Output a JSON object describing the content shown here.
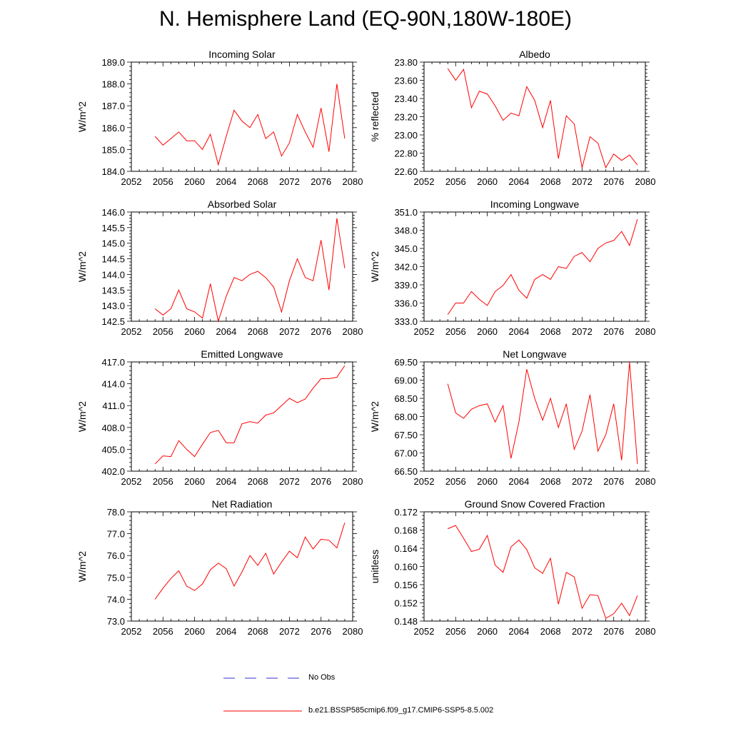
{
  "title": "N. Hemisphere Land (EQ-90N,180W-180E)",
  "colors": {
    "model": "#ff0000",
    "obs": "#3333cc",
    "axis": "#000000"
  },
  "legend": [
    {
      "label": "No Obs",
      "style": "dashed",
      "color": "#3333cc"
    },
    {
      "label": "b.e21.BSSP585cmip6.f09_g17.CMIP6-SSP5-8.5.002",
      "style": "solid",
      "color": "#ff0000"
    }
  ],
  "chart_data": [
    {
      "type": "line",
      "title": "Incoming Solar",
      "ylabel": "W/m^2",
      "xlim": [
        2052,
        2080
      ],
      "ylim": [
        184.0,
        189.0
      ],
      "xticks": [
        2052,
        2056,
        2060,
        2064,
        2068,
        2072,
        2076,
        2080
      ],
      "yticks": [
        "184.0",
        "185.0",
        "186.0",
        "187.0",
        "188.0",
        "189.0"
      ],
      "x": [
        2055,
        2056,
        2057,
        2058,
        2059,
        2060,
        2061,
        2062,
        2063,
        2064,
        2065,
        2066,
        2067,
        2068,
        2069,
        2070,
        2071,
        2072,
        2073,
        2074,
        2075,
        2076,
        2077,
        2078,
        2079
      ],
      "series": [
        {
          "values": [
            185.6,
            185.2,
            185.5,
            185.8,
            185.4,
            185.4,
            185.0,
            185.7,
            184.3,
            185.6,
            186.8,
            186.3,
            186.0,
            186.6,
            185.5,
            185.8,
            184.7,
            185.3,
            186.6,
            185.8,
            185.1,
            186.9,
            184.9,
            188.0,
            185.5
          ]
        }
      ]
    },
    {
      "type": "line",
      "title": "Albedo",
      "ylabel": "% reflected",
      "xlim": [
        2052,
        2080
      ],
      "ylim": [
        22.6,
        23.8
      ],
      "xticks": [
        2052,
        2056,
        2060,
        2064,
        2068,
        2072,
        2076,
        2080
      ],
      "yticks": [
        "22.60",
        "22.80",
        "23.00",
        "23.20",
        "23.40",
        "23.60",
        "23.80"
      ],
      "x": [
        2055,
        2056,
        2057,
        2058,
        2059,
        2060,
        2061,
        2062,
        2063,
        2064,
        2065,
        2066,
        2067,
        2068,
        2069,
        2070,
        2071,
        2072,
        2073,
        2074,
        2075,
        2076,
        2077,
        2078,
        2079
      ],
      "series": [
        {
          "values": [
            23.73,
            23.6,
            23.72,
            23.3,
            23.48,
            23.45,
            23.32,
            23.16,
            23.24,
            23.21,
            23.53,
            23.38,
            23.08,
            23.38,
            22.74,
            23.21,
            23.12,
            22.64,
            22.98,
            22.91,
            22.64,
            22.79,
            22.72,
            22.78,
            22.67
          ]
        }
      ]
    },
    {
      "type": "line",
      "title": "Absorbed Solar",
      "ylabel": "W/m^2",
      "xlim": [
        2052,
        2080
      ],
      "ylim": [
        142.5,
        146.0
      ],
      "xticks": [
        2052,
        2056,
        2060,
        2064,
        2068,
        2072,
        2076,
        2080
      ],
      "yticks": [
        "142.5",
        "143.0",
        "143.5",
        "144.0",
        "144.5",
        "145.0",
        "145.5",
        "146.0"
      ],
      "x": [
        2055,
        2056,
        2057,
        2058,
        2059,
        2060,
        2061,
        2062,
        2063,
        2064,
        2065,
        2066,
        2067,
        2068,
        2069,
        2070,
        2071,
        2072,
        2073,
        2074,
        2075,
        2076,
        2077,
        2078,
        2079
      ],
      "series": [
        {
          "values": [
            142.9,
            142.7,
            142.9,
            143.5,
            142.9,
            142.8,
            142.6,
            143.7,
            142.5,
            143.3,
            143.9,
            143.8,
            144.0,
            144.1,
            143.9,
            143.6,
            142.8,
            143.8,
            144.5,
            143.9,
            143.8,
            145.1,
            143.5,
            145.8,
            144.2
          ]
        }
      ]
    },
    {
      "type": "line",
      "title": "Incoming Longwave",
      "ylabel": "W/m^2",
      "xlim": [
        2052,
        2080
      ],
      "ylim": [
        333.0,
        351.0
      ],
      "xticks": [
        2052,
        2056,
        2060,
        2064,
        2068,
        2072,
        2076,
        2080
      ],
      "yticks": [
        "333.0",
        "336.0",
        "339.0",
        "342.0",
        "345.0",
        "348.0",
        "351.0"
      ],
      "x": [
        2055,
        2056,
        2057,
        2058,
        2059,
        2060,
        2061,
        2062,
        2063,
        2064,
        2065,
        2066,
        2067,
        2068,
        2069,
        2070,
        2071,
        2072,
        2073,
        2074,
        2075,
        2076,
        2077,
        2078,
        2079
      ],
      "series": [
        {
          "values": [
            334.1,
            336.0,
            336.0,
            337.9,
            336.6,
            335.6,
            337.9,
            338.9,
            340.7,
            338.1,
            336.8,
            339.9,
            340.7,
            339.9,
            342.0,
            341.7,
            343.7,
            344.3,
            342.8,
            345.0,
            345.9,
            346.3,
            347.8,
            345.5,
            349.8
          ]
        }
      ]
    },
    {
      "type": "line",
      "title": "Emitted Longwave",
      "ylabel": "W/m^2",
      "xlim": [
        2052,
        2080
      ],
      "ylim": [
        402.0,
        417.0
      ],
      "xticks": [
        2052,
        2056,
        2060,
        2064,
        2068,
        2072,
        2076,
        2080
      ],
      "yticks": [
        "402.0",
        "405.0",
        "408.0",
        "411.0",
        "414.0",
        "417.0"
      ],
      "x": [
        2055,
        2056,
        2057,
        2058,
        2059,
        2060,
        2061,
        2062,
        2063,
        2064,
        2065,
        2066,
        2067,
        2068,
        2069,
        2070,
        2071,
        2072,
        2073,
        2074,
        2075,
        2076,
        2077,
        2078,
        2079
      ],
      "series": [
        {
          "values": [
            403.0,
            404.1,
            404.0,
            406.2,
            405.0,
            404.0,
            405.7,
            407.3,
            407.6,
            405.9,
            405.9,
            408.5,
            408.8,
            408.6,
            409.7,
            410.0,
            411.0,
            412.0,
            411.4,
            411.9,
            413.4,
            414.7,
            414.7,
            414.9,
            416.5
          ]
        }
      ]
    },
    {
      "type": "line",
      "title": "Net Longwave",
      "ylabel": "W/m^2",
      "xlim": [
        2052,
        2080
      ],
      "ylim": [
        66.5,
        69.5
      ],
      "xticks": [
        2052,
        2056,
        2060,
        2064,
        2068,
        2072,
        2076,
        2080
      ],
      "yticks": [
        "66.50",
        "67.00",
        "67.50",
        "68.00",
        "68.50",
        "69.00",
        "69.50"
      ],
      "x": [
        2055,
        2056,
        2057,
        2058,
        2059,
        2060,
        2061,
        2062,
        2063,
        2064,
        2065,
        2066,
        2067,
        2068,
        2069,
        2070,
        2071,
        2072,
        2073,
        2074,
        2075,
        2076,
        2077,
        2078,
        2079
      ],
      "series": [
        {
          "values": [
            68.9,
            68.1,
            67.95,
            68.2,
            68.3,
            68.35,
            67.85,
            68.3,
            66.85,
            67.85,
            69.3,
            68.5,
            67.9,
            68.5,
            67.7,
            68.35,
            67.1,
            67.6,
            68.6,
            67.05,
            67.5,
            68.35,
            66.8,
            69.5,
            66.7
          ]
        }
      ]
    },
    {
      "type": "line",
      "title": "Net Radiation",
      "ylabel": "W/m^2",
      "xlim": [
        2052,
        2080
      ],
      "ylim": [
        73.0,
        78.0
      ],
      "xticks": [
        2052,
        2056,
        2060,
        2064,
        2068,
        2072,
        2076,
        2080
      ],
      "yticks": [
        "73.0",
        "74.0",
        "75.0",
        "76.0",
        "77.0",
        "78.0"
      ],
      "x": [
        2055,
        2056,
        2057,
        2058,
        2059,
        2060,
        2061,
        2062,
        2063,
        2064,
        2065,
        2066,
        2067,
        2068,
        2069,
        2070,
        2071,
        2072,
        2073,
        2074,
        2075,
        2076,
        2077,
        2078,
        2079
      ],
      "series": [
        {
          "values": [
            74.0,
            74.5,
            74.95,
            75.3,
            74.6,
            74.4,
            74.7,
            75.35,
            75.65,
            75.4,
            74.6,
            75.25,
            76.0,
            75.55,
            76.1,
            75.15,
            75.7,
            76.2,
            75.9,
            76.85,
            76.3,
            76.75,
            76.7,
            76.35,
            77.5
          ]
        }
      ]
    },
    {
      "type": "line",
      "title": "Ground Snow Covered Fraction",
      "ylabel": "unitless",
      "xlim": [
        2052,
        2080
      ],
      "ylim": [
        0.148,
        0.172
      ],
      "xticks": [
        2052,
        2056,
        2060,
        2064,
        2068,
        2072,
        2076,
        2080
      ],
      "yticks": [
        "0.148",
        "0.152",
        "0.156",
        "0.160",
        "0.164",
        "0.168",
        "0.172"
      ],
      "x": [
        2055,
        2056,
        2057,
        2058,
        2059,
        2060,
        2061,
        2062,
        2063,
        2064,
        2065,
        2066,
        2067,
        2068,
        2069,
        2070,
        2071,
        2072,
        2073,
        2074,
        2075,
        2076,
        2077,
        2078,
        2079
      ],
      "series": [
        {
          "values": [
            0.1683,
            0.169,
            0.1662,
            0.1633,
            0.1638,
            0.1668,
            0.1603,
            0.1587,
            0.1643,
            0.1658,
            0.1637,
            0.1597,
            0.1585,
            0.1618,
            0.1517,
            0.1587,
            0.1577,
            0.1508,
            0.1538,
            0.1536,
            0.1486,
            0.1496,
            0.1519,
            0.1492,
            0.1536
          ]
        }
      ]
    }
  ]
}
